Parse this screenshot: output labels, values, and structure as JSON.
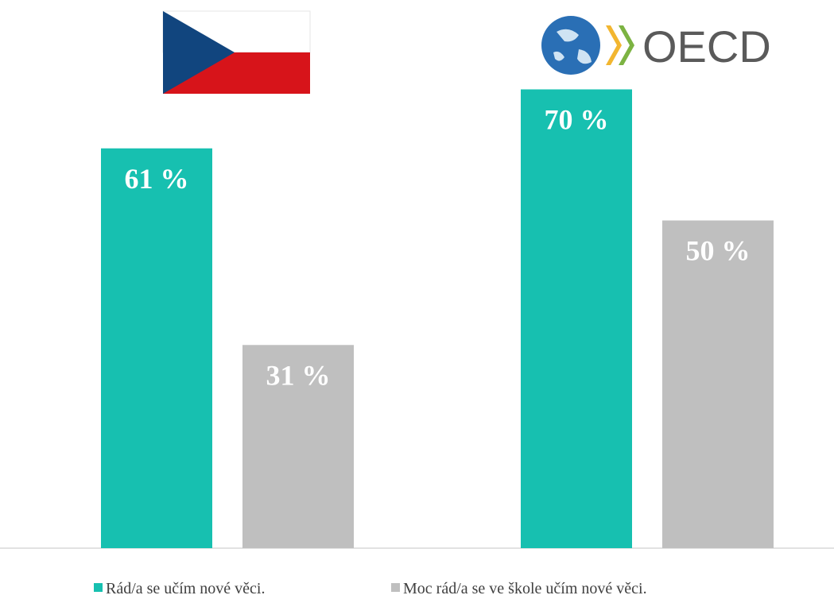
{
  "chart_data": {
    "type": "bar",
    "categories": [
      null,
      "OECD"
    ],
    "series": [
      {
        "name": "Rád/a se učím nové věci.",
        "color": "#17c0b0",
        "values": [
          61,
          70
        ],
        "value_labels": [
          "61 %",
          "70 %"
        ]
      },
      {
        "name": "Moc rád/a se ve škole učím nové věci.",
        "color": "#bfbfbf",
        "values": [
          31,
          50
        ],
        "value_labels": [
          "31 %",
          "50 %"
        ]
      }
    ]
  }
}
